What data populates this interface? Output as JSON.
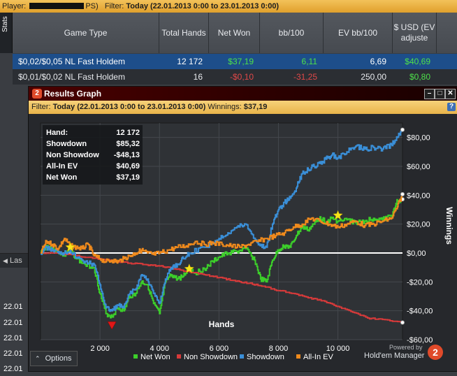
{
  "topbar": {
    "player_label": "Player:",
    "player_suffix": "PS)",
    "filter_label": "Filter:",
    "filter_value": "Today (22.01.2013 0:00 to 23.01.2013 0:00)"
  },
  "stats_tab": "Stats",
  "table": {
    "headers": [
      "Game Type",
      "Total Hands",
      "Net Won",
      "bb/100",
      "EV bb/100",
      "$ USD (EV adjuste"
    ],
    "rows": [
      {
        "game": "$0,02/$0,05 NL Fast Holdem",
        "hands": "12 172",
        "net": "$37,19",
        "bb": "6,11",
        "ev": "6,69",
        "usd": "$40,69"
      },
      {
        "game": "$0,01/$0,02 NL Fast Holdem",
        "hands": "16",
        "net": "-$0,10",
        "bb": "-31,25",
        "ev": "250,00",
        "usd": "$0,80"
      }
    ]
  },
  "left": {
    "last_label": "Las",
    "dates": [
      "22.01",
      "22.01",
      "22.01",
      "22.01",
      "22.01"
    ]
  },
  "window": {
    "logo": "2",
    "title": "Results Graph",
    "filter_label": "Filter:",
    "filter_value": "Today (22.01.2013 0:00 to 23.01.2013 0:00)",
    "winnings_label": "Winnings:",
    "winnings_value": "$37,19",
    "help": "?",
    "options_label": "Options",
    "brand_top": "Powered by",
    "brand_name": "Hold'em Manager",
    "brand_logo": "2"
  },
  "statsbox": [
    {
      "label": "Hand:",
      "value": "12 172"
    },
    {
      "label": "Showdown",
      "value": "$85,32"
    },
    {
      "label": "Non Showdow",
      "value": "-$48,13"
    },
    {
      "label": "All-In EV",
      "value": "$40,69"
    },
    {
      "label": "Net Won",
      "value": "$37,19"
    }
  ],
  "chart_data": {
    "type": "line",
    "xlabel": "Hands",
    "ylabel": "Winnings",
    "xlim": [
      0,
      12172
    ],
    "ylim": [
      -60,
      90
    ],
    "xticks": [
      2000,
      4000,
      6000,
      8000,
      10000
    ],
    "xtick_labels": [
      "2 000",
      "4 000",
      "6 000",
      "8 000",
      "10 000"
    ],
    "yticks": [
      -60,
      -40,
      -20,
      0,
      20,
      40,
      60,
      80
    ],
    "ytick_labels": [
      "-$60,00",
      "-$40,00",
      "-$20,00",
      "$0,00",
      "$20,00",
      "$40,00",
      "$60,00",
      "$80,00"
    ],
    "legend": "bottom",
    "colors": {
      "net": "#3ccf2a",
      "nonsd": "#d83a3a",
      "sd": "#3a8fd8",
      "ev": "#f08a1c"
    },
    "series": [
      {
        "name": "Net Won",
        "key": "net",
        "x": [
          0,
          200,
          400,
          600,
          800,
          1000,
          1200,
          1500,
          1800,
          2000,
          2200,
          2400,
          2600,
          2800,
          3000,
          3200,
          3400,
          3600,
          3800,
          4000,
          4200,
          4400,
          4600,
          4800,
          5000,
          5200,
          5500,
          5800,
          6000,
          6300,
          6600,
          6900,
          7200,
          7400,
          7600,
          7800,
          8000,
          8200,
          8400,
          8600,
          8800,
          9000,
          9200,
          9400,
          9600,
          9800,
          10000,
          10300,
          10600,
          10900,
          11200,
          11500,
          11800,
          11900,
          12000,
          12172
        ],
        "y": [
          0,
          5,
          3,
          1,
          -2,
          3,
          -4,
          -8,
          -10,
          -28,
          -42,
          -44,
          -38,
          -40,
          -30,
          -28,
          -20,
          -22,
          -35,
          -42,
          -20,
          -15,
          -18,
          -16,
          -10,
          -14,
          -11,
          -6,
          -3,
          0,
          1,
          3,
          -5,
          -18,
          -20,
          -5,
          2,
          5,
          4,
          12,
          18,
          16,
          20,
          25,
          21,
          24,
          22,
          23,
          21,
          22,
          24,
          23,
          26,
          30,
          36,
          37.19
        ]
      },
      {
        "name": "Non Showdown",
        "key": "nonsd",
        "x": [
          0,
          500,
          1000,
          1500,
          2000,
          2500,
          3000,
          3500,
          4000,
          4500,
          5000,
          5500,
          6000,
          6500,
          7000,
          7500,
          8000,
          8500,
          9000,
          9500,
          10000,
          10500,
          11000,
          11500,
          12172
        ],
        "y": [
          0,
          0,
          -1,
          -3,
          -4,
          -6,
          -7,
          -8,
          -9,
          -11,
          -13,
          -15,
          -17,
          -19,
          -21,
          -23,
          -26,
          -28,
          -31,
          -33,
          -37,
          -41,
          -45,
          -46,
          -48.13
        ]
      },
      {
        "name": "Showdown",
        "key": "sd",
        "x": [
          0,
          200,
          400,
          600,
          800,
          1000,
          1200,
          1500,
          1800,
          2000,
          2200,
          2400,
          2600,
          2800,
          3000,
          3200,
          3400,
          3600,
          3800,
          4000,
          4200,
          4400,
          4600,
          4800,
          5000,
          5500,
          6000,
          6300,
          6600,
          6900,
          7200,
          7400,
          7600,
          7800,
          8000,
          8200,
          8400,
          8600,
          8800,
          9000,
          9200,
          9400,
          9600,
          9800,
          10000,
          10300,
          10600,
          10900,
          11200,
          11500,
          11800,
          12000,
          12172
        ],
        "y": [
          0,
          4,
          2,
          1,
          0,
          2,
          -3,
          -6,
          -8,
          -22,
          -38,
          -40,
          -36,
          -38,
          -28,
          -25,
          -15,
          -18,
          -28,
          -35,
          -18,
          -10,
          -8,
          -4,
          0,
          4,
          10,
          14,
          18,
          20,
          10,
          5,
          4,
          20,
          30,
          35,
          38,
          45,
          55,
          58,
          60,
          62,
          65,
          68,
          66,
          70,
          74,
          72,
          73,
          72,
          75,
          80,
          85.32
        ]
      },
      {
        "name": "All-In EV",
        "key": "ev",
        "x": [
          0,
          200,
          400,
          600,
          800,
          1000,
          1200,
          1400,
          1600,
          1800,
          2000,
          2200,
          2400,
          2600,
          2800,
          3000,
          3200,
          3400,
          3600,
          3800,
          4000,
          4300,
          4600,
          4900,
          5200,
          5500,
          5800,
          6100,
          6400,
          6700,
          7000,
          7300,
          7600,
          7900,
          8200,
          8500,
          8800,
          9100,
          9400,
          9700,
          10000,
          10300,
          10600,
          10900,
          11200,
          11500,
          11800,
          12000,
          12172
        ],
        "y": [
          0,
          8,
          6,
          3,
          10,
          5,
          4,
          3,
          6,
          -2,
          -4,
          -6,
          -5,
          -6,
          -4,
          -2,
          0,
          2,
          0,
          -1,
          0,
          2,
          4,
          5,
          8,
          6,
          7,
          6,
          5,
          4,
          6,
          8,
          10,
          12,
          14,
          18,
          20,
          24,
          22,
          20,
          18,
          20,
          22,
          19,
          20,
          22,
          24,
          32,
          40.69
        ]
      }
    ],
    "markers": [
      {
        "type": "star",
        "x": 1000,
        "y": 4
      },
      {
        "type": "star",
        "x": 5000,
        "y": -11
      },
      {
        "type": "star",
        "x": 10000,
        "y": 26
      },
      {
        "type": "triangle-down",
        "x": 2400,
        "y": -50
      }
    ]
  }
}
